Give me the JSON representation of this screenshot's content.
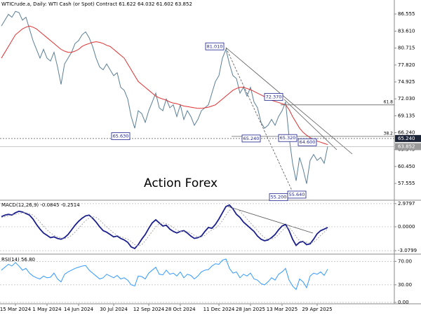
{
  "chart_data": [
    {
      "type": "line",
      "title": "WTICrude.a, Daily:  WTI Cash (or Spot) Contract  61.622 64.032 61.602 63.852",
      "watermark": "Action Forex",
      "categories": [
        null,
        null,
        null,
        null,
        "15 Mar 2024",
        null,
        null,
        null,
        null,
        null,
        null,
        null,
        null,
        "1 May 2024",
        null,
        null,
        null,
        null,
        null,
        null,
        null,
        null,
        "14 Jun 2024",
        null,
        null,
        null,
        null,
        null,
        null,
        null,
        null,
        null,
        "30 Jul 2024",
        null,
        null,
        null,
        null,
        null,
        null,
        null,
        null,
        null,
        "12 Sep 2024",
        null,
        null,
        null,
        null,
        null,
        null,
        null,
        null,
        "28 Oct 2024",
        null,
        null,
        null,
        null,
        null,
        null,
        null,
        null,
        null,
        null,
        "11 Dec 2024",
        null,
        null,
        null,
        null,
        null,
        null,
        null,
        null,
        "28 Jan 2025",
        null,
        null,
        null,
        null,
        null,
        null,
        null,
        null,
        "13 Mar 2025",
        null,
        null,
        null,
        null,
        null,
        null,
        null,
        null,
        null,
        "29 Apr 2025",
        null,
        null,
        null
      ],
      "series": [
        {
          "name": "Close",
          "color": "#5b7f97",
          "values": [
            84.5,
            85.5,
            86.5,
            86,
            87,
            86.8,
            85.5,
            86,
            84,
            82,
            80.5,
            79,
            80.5,
            79,
            78.5,
            80,
            77.5,
            74.5,
            78,
            79,
            80,
            81.5,
            82,
            83,
            83.5,
            82.5,
            81,
            79,
            77.5,
            77,
            78,
            77,
            76,
            76.5,
            74,
            73.5,
            72,
            69,
            67,
            70,
            69.5,
            68,
            70,
            71.5,
            73,
            70.5,
            70,
            72,
            70.5,
            71,
            69,
            71,
            68.5,
            70,
            69,
            67.5,
            68.5,
            70,
            70.5,
            71,
            73,
            75,
            76,
            79,
            80.5,
            78,
            76,
            75.5,
            73,
            74,
            72.5,
            74,
            71.5,
            70.5,
            68,
            67,
            67.5,
            68.5,
            67.5,
            69,
            70,
            71.5,
            65.5,
            61,
            58,
            62,
            60,
            57.5,
            61.5,
            62.5,
            61.5,
            62,
            61,
            63.852
          ]
        },
        {
          "name": "MA",
          "color": "#e03030",
          "values": [
            79,
            80,
            81,
            82,
            83,
            83.5,
            84,
            84.3,
            84.5,
            84.3,
            84,
            83.5,
            83,
            82.5,
            82,
            81.5,
            81,
            80.5,
            80.2,
            80,
            80,
            80.2,
            80.5,
            81,
            81.3,
            81.5,
            81.7,
            81.8,
            81.7,
            81.5,
            81.2,
            81,
            80.5,
            80,
            79.5,
            79,
            78,
            77,
            76,
            75,
            74.5,
            74,
            73.5,
            73,
            72.5,
            72.2,
            72,
            71.8,
            71.5,
            71.3,
            71.2,
            71,
            70.8,
            70.7,
            70.6,
            70.5,
            70.4,
            70.4,
            70.5,
            70.6,
            70.8,
            71,
            71.5,
            72,
            72.5,
            73,
            73.5,
            73.8,
            74,
            74,
            73.8,
            73.6,
            73.3,
            73,
            72.7,
            72.4,
            72.1,
            71.8,
            71.6,
            71.4,
            71.2,
            71,
            70.2,
            69,
            68,
            67,
            66.3,
            65.8,
            65.4,
            65,
            64.8,
            64.6,
            64.4,
            64.2
          ]
        }
      ],
      "ylim": [
        54.8,
        88.35
      ],
      "yticks": [
        86.555,
        {
          "value": 83.61,
          "label": "83.610"
        },
        80.715,
        {
          "value": 77.82,
          "label": "77.820"
        },
        74.925,
        {
          "value": 72.03,
          "label": "72.030"
        },
        69.135,
        {
          "value": 66.24,
          "label": "66.240"
        },
        63.345,
        {
          "value": 60.45,
          "label": "60.450"
        },
        57.555
      ],
      "grid": false,
      "price_line": {
        "value": 65.24,
        "label": "65.240"
      },
      "last_price": {
        "value": 63.852,
        "label": "63.852"
      },
      "fib_levels": [
        {
          "label": "61.8",
          "value": 71.0
        },
        {
          "label": "38.2",
          "value": 65.6
        }
      ],
      "annotations": [
        {
          "label": "81.010",
          "value": 81.01
        },
        {
          "label": "72.370",
          "value": 72.37
        },
        {
          "label": "65.630",
          "value": 65.63
        },
        {
          "label": "65.240",
          "value": 65.24
        },
        {
          "label": "65.320",
          "value": 65.32
        },
        {
          "label": "64.600",
          "value": 64.6
        },
        {
          "label": "55.200",
          "value": 55.2
        },
        {
          "label": "55.640",
          "value": 55.64
        }
      ]
    },
    {
      "type": "line",
      "title": "MACD(12,26,9) -0.0845 -0.2514",
      "series": [
        {
          "name": "MACD",
          "color": "#1a1f8c",
          "values": [
            1.3,
            1.5,
            1.6,
            1.5,
            1.8,
            2.0,
            1.9,
            1.7,
            1.5,
            1.0,
            0.3,
            -0.3,
            -0.8,
            -1.1,
            -1.4,
            -1.3,
            -1.5,
            -1.6,
            -1.4,
            -1.0,
            -0.4,
            0.2,
            0.7,
            1.1,
            1.4,
            1.5,
            1.1,
            0.6,
            0.0,
            -0.5,
            -0.7,
            -1.0,
            -1.3,
            -1.2,
            -1.5,
            -1.7,
            -2.0,
            -2.6,
            -2.8,
            -2.3,
            -1.6,
            -1.0,
            -0.2,
            0.5,
            0.9,
            0.5,
            0.1,
            0.2,
            -0.3,
            -0.6,
            -0.8,
            -0.6,
            -0.5,
            -0.8,
            -1.2,
            -1.5,
            -1.4,
            -1.2,
            -0.6,
            -0.1,
            -0.2,
            0.3,
            1.0,
            1.8,
            2.6,
            2.8,
            2.3,
            1.6,
            1.2,
            0.6,
            0.2,
            -0.2,
            -0.6,
            -1.2,
            -1.6,
            -1.8,
            -1.7,
            -1.4,
            -1.0,
            -0.4,
            0.1,
            0.3,
            -0.5,
            -1.6,
            -2.4,
            -2.0,
            -1.9,
            -2.3,
            -2.2,
            -1.6,
            -0.9,
            -0.5,
            -0.3,
            -0.0845
          ]
        },
        {
          "name": "Signal",
          "color": "#a8a8a8",
          "values": [
            1.2,
            1.3,
            1.4,
            1.5,
            1.6,
            1.7,
            1.8,
            1.8,
            1.7,
            1.5,
            1.1,
            0.6,
            0.1,
            -0.4,
            -0.8,
            -1.1,
            -1.3,
            -1.4,
            -1.5,
            -1.4,
            -1.1,
            -0.7,
            -0.2,
            0.3,
            0.8,
            1.1,
            1.3,
            1.2,
            0.9,
            0.4,
            0.0,
            -0.4,
            -0.8,
            -1.1,
            -1.3,
            -1.4,
            -1.6,
            -1.9,
            -2.3,
            -2.5,
            -2.3,
            -1.8,
            -1.2,
            -0.6,
            0.0,
            0.4,
            0.5,
            0.4,
            0.2,
            -0.1,
            -0.4,
            -0.6,
            -0.6,
            -0.6,
            -0.8,
            -1.1,
            -1.3,
            -1.3,
            -1.1,
            -0.7,
            -0.4,
            -0.2,
            0.2,
            0.8,
            1.5,
            2.1,
            2.4,
            2.3,
            2.0,
            1.5,
            1.0,
            0.5,
            0.0,
            -0.5,
            -1.0,
            -1.4,
            -1.6,
            -1.6,
            -1.4,
            -1.0,
            -0.5,
            -0.1,
            -0.1,
            -0.6,
            -1.3,
            -1.8,
            -1.9,
            -2.0,
            -2.1,
            -2.0,
            -1.6,
            -1.1,
            -0.7,
            -0.2514
          ]
        }
      ],
      "ylim": [
        -3.43,
        3.33
      ],
      "yticks": [
        2.9797,
        {
          "value": 0,
          "label": "0.0000"
        },
        -3.0799
      ],
      "grid": true
    },
    {
      "type": "line",
      "title": "RSI(14) 56.80",
      "series": [
        {
          "name": "RSI",
          "color": "#3399ff",
          "values": [
            55,
            60,
            65,
            62,
            68,
            62,
            55,
            58,
            50,
            45,
            42,
            40,
            45,
            42,
            43,
            50,
            40,
            35,
            48,
            52,
            55,
            58,
            60,
            62,
            63,
            55,
            50,
            45,
            40,
            42,
            48,
            45,
            42,
            46,
            40,
            42,
            38,
            30,
            28,
            45,
            44,
            40,
            50,
            55,
            60,
            48,
            47,
            55,
            48,
            50,
            45,
            52,
            42,
            48,
            46,
            40,
            45,
            52,
            55,
            56,
            62,
            66,
            65,
            72,
            74,
            58,
            50,
            52,
            42,
            48,
            45,
            50,
            40,
            38,
            32,
            30,
            35,
            42,
            38,
            48,
            52,
            58,
            38,
            28,
            22,
            40,
            35,
            25,
            45,
            50,
            48,
            52,
            46,
            56.8
          ]
        }
      ],
      "ylim": [
        0,
        80
      ],
      "yticks": [
        {
          "value": 70,
          "label": "70.00"
        },
        {
          "value": 30,
          "label": "30.00"
        },
        {
          "value": 0,
          "label": "0.00"
        }
      ],
      "grid": true
    }
  ]
}
